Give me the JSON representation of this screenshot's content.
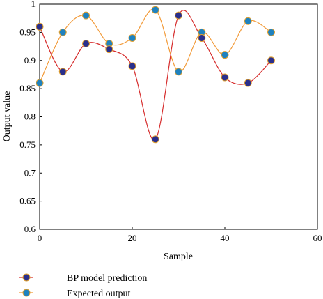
{
  "chart_data": {
    "type": "line",
    "title": "",
    "xlabel": "Sample",
    "ylabel": "Output value",
    "xlim": [
      0,
      60
    ],
    "ylim": [
      0.6,
      1.0
    ],
    "xticks": [
      "0",
      "20",
      "40",
      "60"
    ],
    "yticks": [
      "0.6",
      "0.65",
      "0.7",
      "0.75",
      "0.8",
      "0.85",
      "0.9",
      "0.95",
      "1"
    ],
    "grid": false,
    "legend_position": "bottom-left",
    "x": [
      0,
      5,
      10,
      15,
      20,
      25,
      30,
      35,
      40,
      45,
      50
    ],
    "series": [
      {
        "name": "BP model prediction",
        "line_color": "#d62c2c",
        "marker_fill": "#2a2f8c",
        "values": [
          0.96,
          0.88,
          0.93,
          0.92,
          0.89,
          0.76,
          0.98,
          0.94,
          0.87,
          0.86,
          0.9
        ]
      },
      {
        "name": "Expected output",
        "line_color": "#f29a38",
        "marker_fill": "#1f82bf",
        "values": [
          0.86,
          0.95,
          0.98,
          0.93,
          0.94,
          0.99,
          0.88,
          0.95,
          0.91,
          0.97,
          0.95
        ]
      }
    ]
  },
  "colors": {
    "marker_edge": "#e0a030"
  }
}
